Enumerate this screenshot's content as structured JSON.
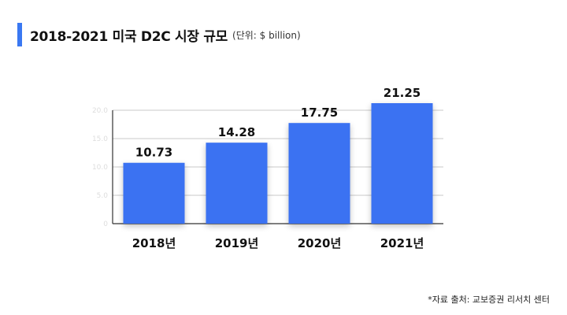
{
  "title": {
    "main": "2018-2021 미국 D2C 시장 규모",
    "unit": "(단위: $ billion)"
  },
  "footnote": "*자료 출처: 교보증권 리서치 센터",
  "colors": {
    "accent": "#3a78f2",
    "bar": "#3a72f2",
    "grid": "#c8c8c8",
    "axis": "#333333"
  },
  "chart_data": {
    "type": "bar",
    "categories": [
      "2018년",
      "2019년",
      "2020년",
      "2021년"
    ],
    "values": [
      10.73,
      14.28,
      17.75,
      21.25
    ],
    "value_labels": [
      "10.73",
      "14.28",
      "17.75",
      "21.25"
    ],
    "title": "2018-2021 미국 D2C 시장 규모",
    "subtitle": "(단위: $ billion)",
    "xlabel": "",
    "ylabel": "",
    "ylim": [
      0,
      20
    ],
    "yticks": [
      0,
      5,
      10,
      15,
      20
    ],
    "ytick_labels": [
      "0",
      "5.0",
      "10.0",
      "15.0",
      "20.0"
    ],
    "grid": true,
    "legend": "none"
  }
}
